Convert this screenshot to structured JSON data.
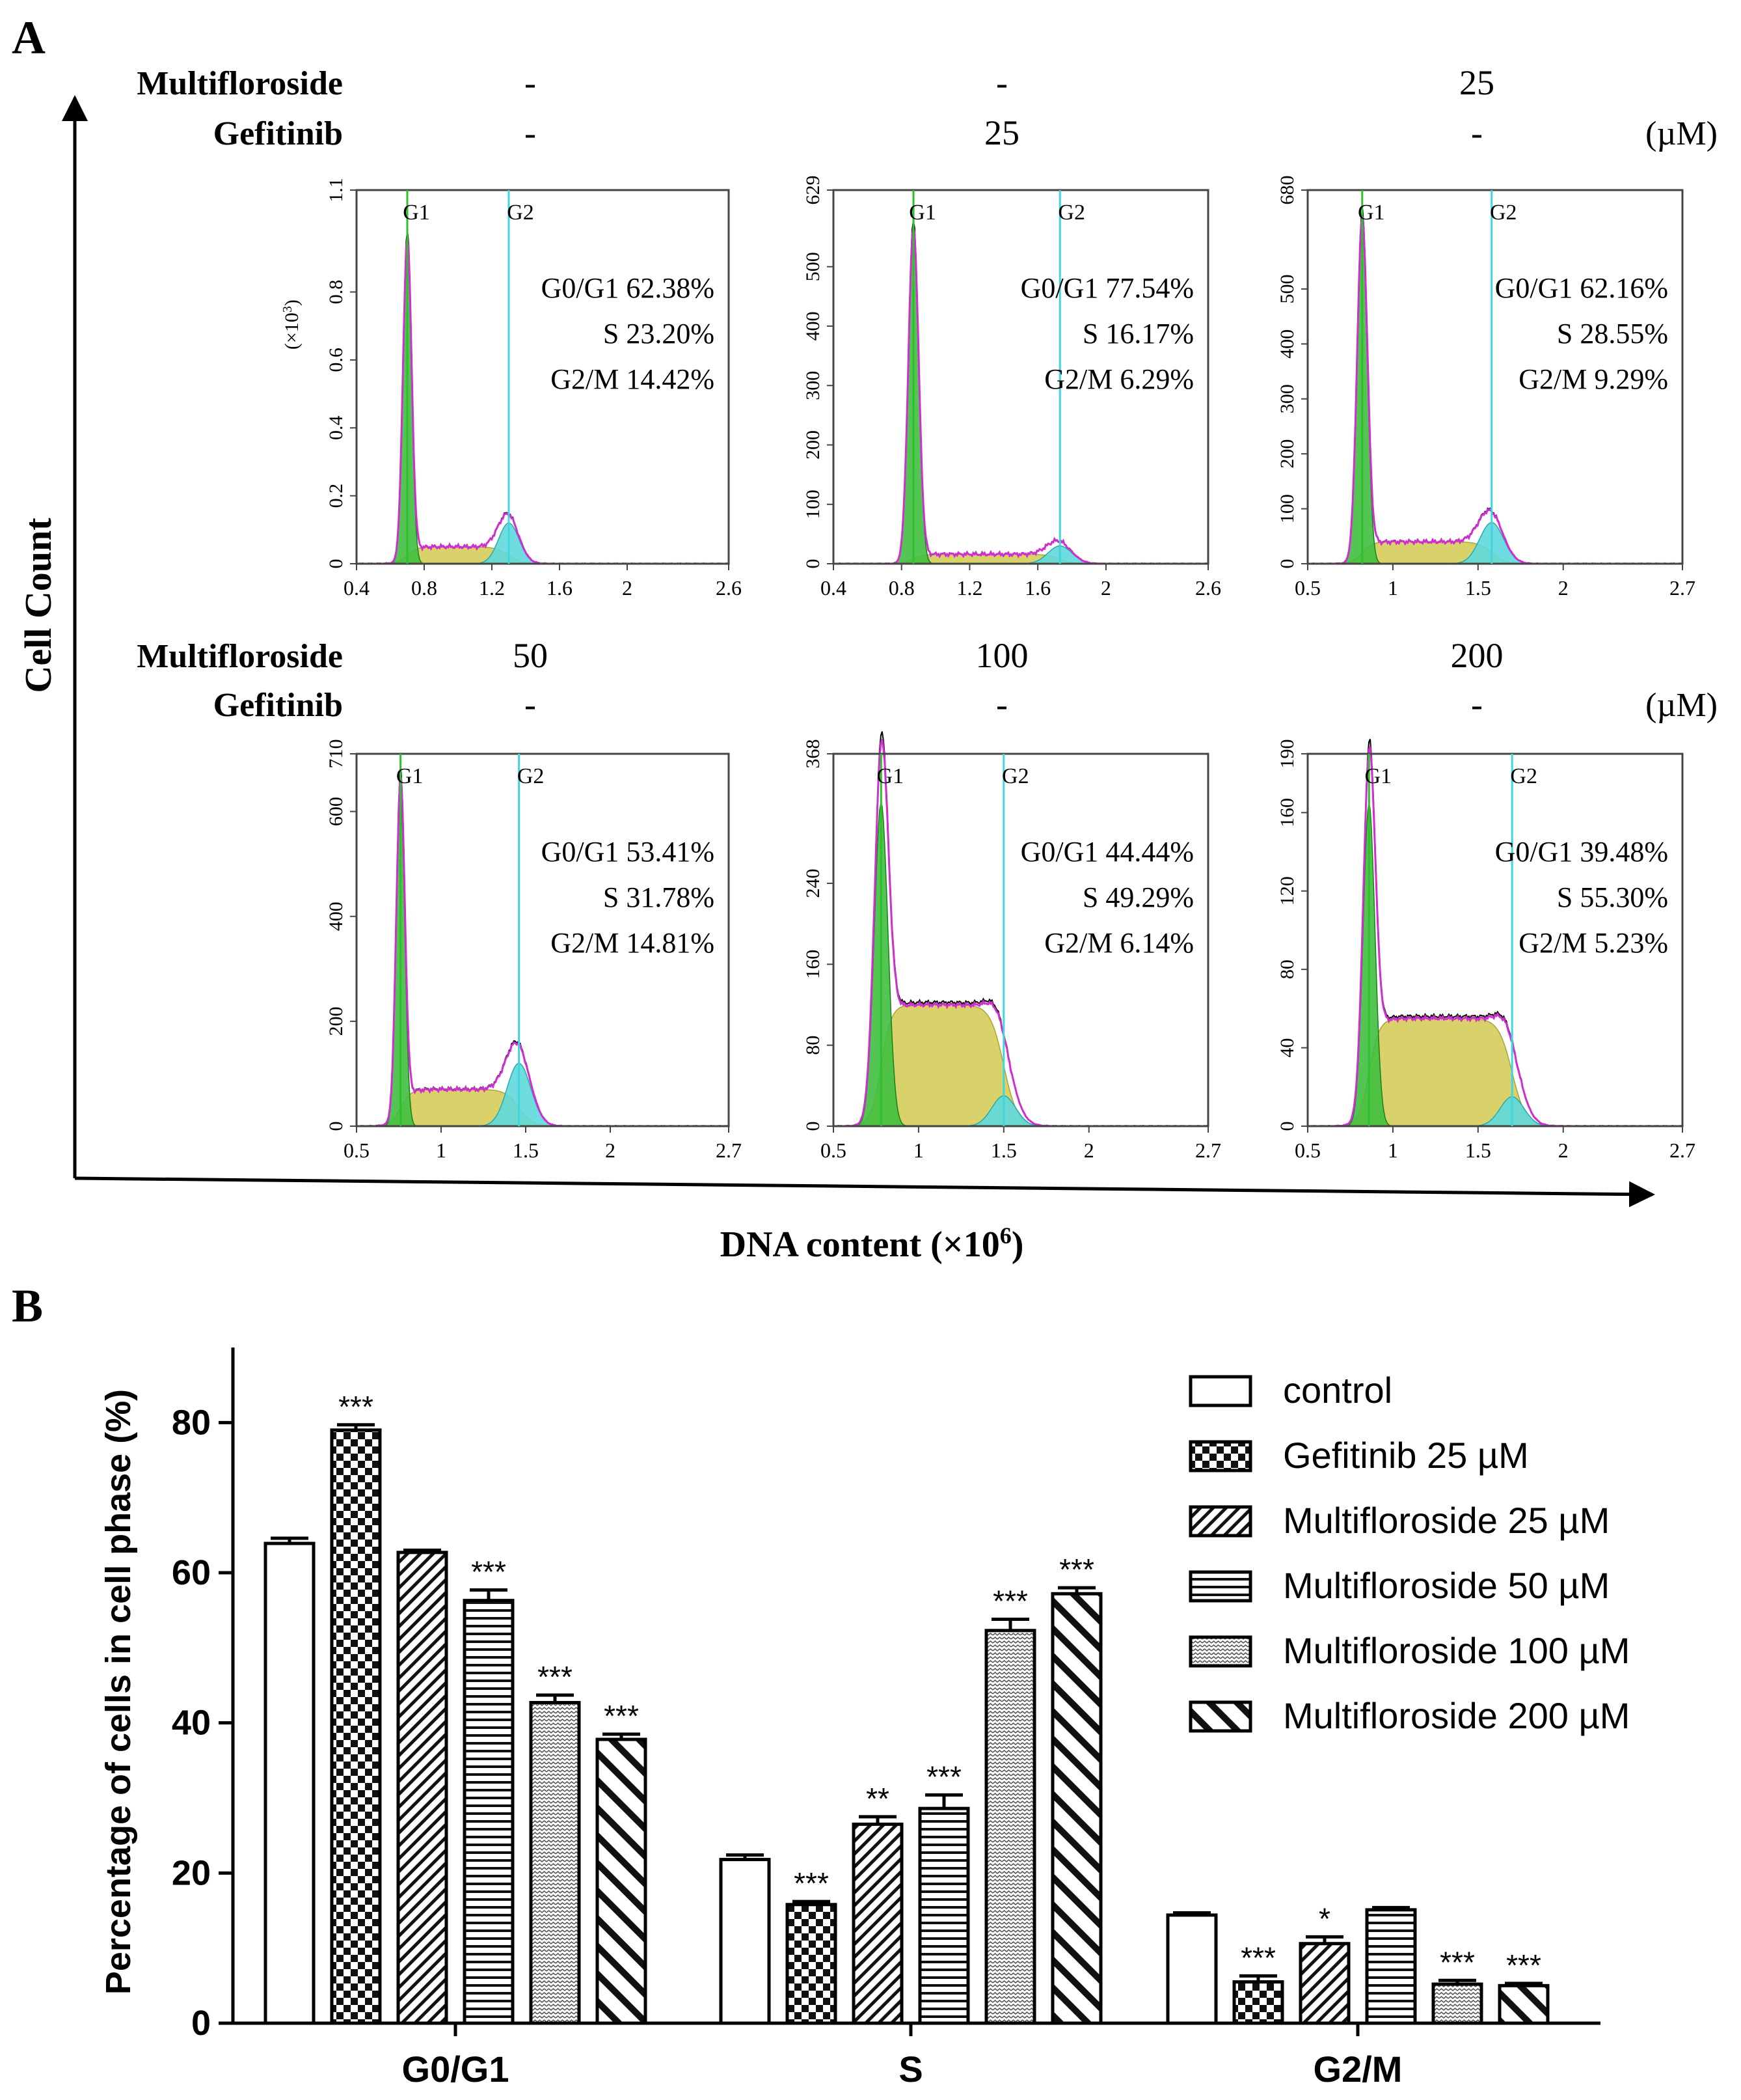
{
  "figure": {
    "panel_a_label": "A",
    "panel_b_label": "B",
    "y_axis_label": "Cell Count",
    "x_axis_label": "DNA content (×10",
    "x_axis_label_sup": "6",
    "x_axis_label_end": ")"
  },
  "rows": [
    {
      "multifloroside_label": "Multifloroside",
      "gefitinib_label": "Gefitinib",
      "unit": "(µM)",
      "conditions": [
        {
          "multifloroside": "-",
          "gefitinib": "-"
        },
        {
          "multifloroside": "-",
          "gefitinib": "25"
        },
        {
          "multifloroside": "25",
          "gefitinib": "-"
        }
      ]
    },
    {
      "multifloroside_label": "Multifloroside",
      "gefitinib_label": "Gefitinib",
      "unit": "(µM)",
      "conditions": [
        {
          "multifloroside": "50",
          "gefitinib": "-"
        },
        {
          "multifloroside": "100",
          "gefitinib": "-"
        },
        {
          "multifloroside": "200",
          "gefitinib": "-"
        }
      ]
    }
  ],
  "histograms": [
    {
      "g1_label": "G1",
      "g2_label": "G2",
      "y_unit": "(×10",
      "y_unit_sup": "3",
      "y_unit_end": ")",
      "yticks": [
        "0",
        "0.2",
        "0.4",
        "0.6",
        "0.8",
        "1.1"
      ],
      "ymax": 1.1,
      "ytick_values": [
        0,
        0.2,
        0.4,
        0.6,
        0.8,
        1.1
      ],
      "xticks": [
        "0.4",
        "0.8",
        "1.2",
        "1.6",
        "2",
        "2.6"
      ],
      "xtick_values": [
        0.4,
        0.8,
        1.2,
        1.6,
        2,
        2.6
      ],
      "xmin": 0.4,
      "xmax": 2.6,
      "g1_pos": 0.7,
      "g2_pos": 1.3,
      "g1_height": 0.94,
      "g1_sigma": 0.025,
      "g2_height": 0.12,
      "g2_sigma": 0.06,
      "s_level": 0.05,
      "g0g1_label": "G0/G1",
      "g0g1": "62.38%",
      "s_label": "S",
      "s": "23.20%",
      "g2m_label": "G2/M",
      "g2m": "14.42%"
    },
    {
      "g1_label": "G1",
      "g2_label": "G2",
      "y_unit": "",
      "y_unit_sup": "",
      "y_unit_end": "",
      "yticks": [
        "0",
        "100",
        "200",
        "300",
        "400",
        "500",
        "629"
      ],
      "ymax": 629,
      "ytick_values": [
        0,
        100,
        200,
        300,
        400,
        500,
        629
      ],
      "xticks": [
        "0.4",
        "0.8",
        "1.2",
        "1.6",
        "2",
        "2.6"
      ],
      "xtick_values": [
        0.4,
        0.8,
        1.2,
        1.6,
        2,
        2.6
      ],
      "xmin": 0.4,
      "xmax": 2.6,
      "g1_pos": 0.87,
      "g2_pos": 1.73,
      "g1_height": 560,
      "g1_sigma": 0.03,
      "g2_height": 30,
      "g2_sigma": 0.07,
      "s_level": 16,
      "g0g1_label": "G0/G1",
      "g0g1": "77.54%",
      "s_label": "S",
      "s": "16.17%",
      "g2m_label": "G2/M",
      "g2m": "6.29%"
    },
    {
      "g1_label": "G1",
      "g2_label": "G2",
      "y_unit": "",
      "y_unit_sup": "",
      "y_unit_end": "",
      "yticks": [
        "0",
        "100",
        "200",
        "300",
        "400",
        "500",
        "680"
      ],
      "ymax": 680,
      "ytick_values": [
        0,
        100,
        200,
        300,
        400,
        500,
        680
      ],
      "xticks": [
        "0.5",
        "1",
        "1.5",
        "2",
        "2.7"
      ],
      "xtick_values": [
        0.5,
        1,
        1.5,
        2,
        2.7
      ],
      "xmin": 0.5,
      "xmax": 2.7,
      "g1_pos": 0.82,
      "g2_pos": 1.58,
      "g1_height": 610,
      "g1_sigma": 0.03,
      "g2_height": 75,
      "g2_sigma": 0.07,
      "s_level": 40,
      "g0g1_label": "G0/G1",
      "g0g1": "62.16%",
      "s_label": "S",
      "s": "28.55%",
      "g2m_label": "G2/M",
      "g2m": "9.29%"
    },
    {
      "g1_label": "G1",
      "g2_label": "G2",
      "y_unit": "",
      "y_unit_sup": "",
      "y_unit_end": "",
      "yticks": [
        "0",
        "200",
        "400",
        "600",
        "710"
      ],
      "ymax": 710,
      "ytick_values": [
        0,
        200,
        400,
        600,
        710
      ],
      "xticks": [
        "0.5",
        "1",
        "1.5",
        "2",
        "2.7"
      ],
      "xtick_values": [
        0.5,
        1,
        1.5,
        2,
        2.7
      ],
      "xmin": 0.5,
      "xmax": 2.7,
      "g1_pos": 0.76,
      "g2_pos": 1.46,
      "g1_height": 630,
      "g1_sigma": 0.025,
      "g2_height": 120,
      "g2_sigma": 0.07,
      "s_level": 70,
      "g0g1_label": "G0/G1",
      "g0g1": "53.41%",
      "s_label": "S",
      "s": "31.78%",
      "g2m_label": "G2/M",
      "g2m": "14.81%"
    },
    {
      "g1_label": "G1",
      "g2_label": "G2",
      "y_unit": "",
      "y_unit_sup": "",
      "y_unit_end": "",
      "yticks": [
        "0",
        "80",
        "160",
        "240",
        "368"
      ],
      "ymax": 368,
      "ytick_values": [
        0,
        80,
        160,
        240,
        368
      ],
      "xticks": [
        "0.5",
        "1",
        "1.5",
        "2",
        "2.7"
      ],
      "xtick_values": [
        0.5,
        1,
        1.5,
        2,
        2.7
      ],
      "xmin": 0.5,
      "xmax": 2.7,
      "g1_pos": 0.78,
      "g2_pos": 1.5,
      "g1_height": 320,
      "g1_sigma": 0.04,
      "g2_height": 30,
      "g2_sigma": 0.07,
      "s_level": 120,
      "g0g1_label": "G0/G1",
      "g0g1": "44.44%",
      "s_label": "S",
      "s": "49.29%",
      "g2m_label": "G2/M",
      "g2m": "6.14%"
    },
    {
      "g1_label": "G1",
      "g2_label": "G2",
      "y_unit": "",
      "y_unit_sup": "",
      "y_unit_end": "",
      "yticks": [
        "0",
        "40",
        "80",
        "120",
        "160",
        "190"
      ],
      "ymax": 190,
      "ytick_values": [
        0,
        40,
        80,
        120,
        160,
        190
      ],
      "xticks": [
        "0.5",
        "1",
        "1.5",
        "2",
        "2.7"
      ],
      "xtick_values": [
        0.5,
        1,
        1.5,
        2,
        2.7
      ],
      "xmin": 0.5,
      "xmax": 2.7,
      "g1_pos": 0.86,
      "g2_pos": 1.7,
      "g1_height": 165,
      "g1_sigma": 0.035,
      "g2_height": 15,
      "g2_sigma": 0.07,
      "s_level": 55,
      "g0g1_label": "G0/G1",
      "g0g1": "39.48%",
      "s_label": "S",
      "s": "55.30%",
      "g2m_label": "G2/M",
      "g2m": "5.23%"
    }
  ],
  "chart_data": {
    "type": "bar",
    "title": "",
    "xlabel": "",
    "ylabel": "Percentage of cells in cell phase (%)",
    "ylim": [
      0,
      90
    ],
    "yticks": [
      0,
      20,
      40,
      60,
      80
    ],
    "categories": [
      "G0/G1",
      "S",
      "G2/M"
    ],
    "series": [
      {
        "name": "control",
        "pattern": "white",
        "values": [
          63.9,
          21.8,
          14.4
        ],
        "errors": [
          0.7,
          0.6,
          0.3
        ],
        "sig": [
          "",
          "",
          ""
        ]
      },
      {
        "name": "Gefitinib 25 µM",
        "pattern": "checker",
        "values": [
          79.0,
          15.8,
          5.5
        ],
        "errors": [
          0.7,
          0.4,
          0.8
        ],
        "sig": [
          "***",
          "***",
          "***"
        ]
      },
      {
        "name": "Multifloroside 25 µM",
        "pattern": "diagonal-fwd",
        "values": [
          62.7,
          26.5,
          10.6
        ],
        "errors": [
          0.3,
          1.0,
          0.9
        ],
        "sig": [
          "",
          "**",
          "*"
        ]
      },
      {
        "name": "Multifloroside 50 µM",
        "pattern": "horizontal",
        "values": [
          56.3,
          28.6,
          15.1
        ],
        "errors": [
          1.4,
          1.8,
          0.3
        ],
        "sig": [
          "***",
          "***",
          ""
        ]
      },
      {
        "name": "Multifloroside 100 µM",
        "pattern": "zigzag",
        "values": [
          42.7,
          52.3,
          5.2
        ],
        "errors": [
          1.0,
          1.5,
          0.5
        ],
        "sig": [
          "***",
          "***",
          "***"
        ]
      },
      {
        "name": "Multifloroside 200 µM",
        "pattern": "diagonal-back",
        "values": [
          37.8,
          57.2,
          5.0
        ],
        "errors": [
          0.7,
          0.8,
          0.3
        ],
        "sig": [
          "***",
          "***",
          "***"
        ]
      }
    ]
  }
}
